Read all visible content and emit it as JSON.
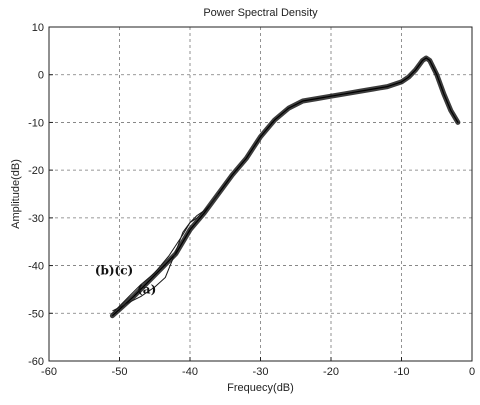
{
  "chart_data": {
    "type": "line",
    "title": "Power Spectral Density",
    "xlabel": "Frequecy(dB)",
    "ylabel": "Amplitude(dB)",
    "xlim": [
      -60,
      0
    ],
    "ylim": [
      -60,
      10
    ],
    "xticks": [
      -60,
      -50,
      -40,
      -30,
      -20,
      -10,
      0
    ],
    "yticks": [
      -60,
      -50,
      -40,
      -30,
      -20,
      -10,
      0,
      10
    ],
    "xtick_labels": [
      "-60",
      "-50",
      "-40",
      "-30",
      "-20",
      "-10",
      "0"
    ],
    "ytick_labels": [
      "-60",
      "-50",
      "-40",
      "-30",
      "-20",
      "-10",
      "0",
      "10"
    ],
    "grid": true,
    "grid_style": "dashed",
    "line_color": "#1a1a1a",
    "series": [
      {
        "x": [
          -51,
          -48,
          -46,
          -44,
          -42,
          -40,
          -38,
          -36,
          -34,
          -32,
          -30,
          -28,
          -26,
          -24,
          -22,
          -20,
          -18,
          -16,
          -14,
          -12,
          -10,
          -9,
          -8,
          -7,
          -6.5,
          -6,
          -5,
          -4,
          -3,
          -2
        ],
        "values": [
          -50.5,
          -46.5,
          -43.5,
          -40.5,
          -37.5,
          -32.5,
          -29,
          -25,
          -21,
          -17.5,
          -13,
          -9.5,
          -7,
          -5.5,
          -5,
          -4.5,
          -4,
          -3.5,
          -3,
          -2.5,
          -1.5,
          -0.5,
          1,
          3,
          3.5,
          3,
          0,
          -4,
          -7.5,
          -10
        ]
      },
      {
        "x": [
          -51,
          -49,
          -47,
          -45,
          -43,
          -41,
          -40,
          -39,
          -38,
          -37,
          -36
        ],
        "values": [
          -50,
          -47,
          -44,
          -41.5,
          -38,
          -33.5,
          -31,
          -29.5,
          -28.5,
          -27,
          -25
        ]
      },
      {
        "x": [
          -51,
          -49,
          -47,
          -45,
          -43.5,
          -42,
          -41,
          -40,
          -39,
          -38,
          -37,
          -36
        ],
        "values": [
          -49.5,
          -48,
          -46.5,
          -44.5,
          -42.5,
          -37,
          -33,
          -31,
          -30,
          -28.5,
          -27,
          -25
        ]
      }
    ],
    "annotations": [
      {
        "text": "(b)(c)",
        "x": -53.5,
        "y": -41
      },
      {
        "text": "(a)",
        "x": -47.5,
        "y": -45
      }
    ]
  }
}
